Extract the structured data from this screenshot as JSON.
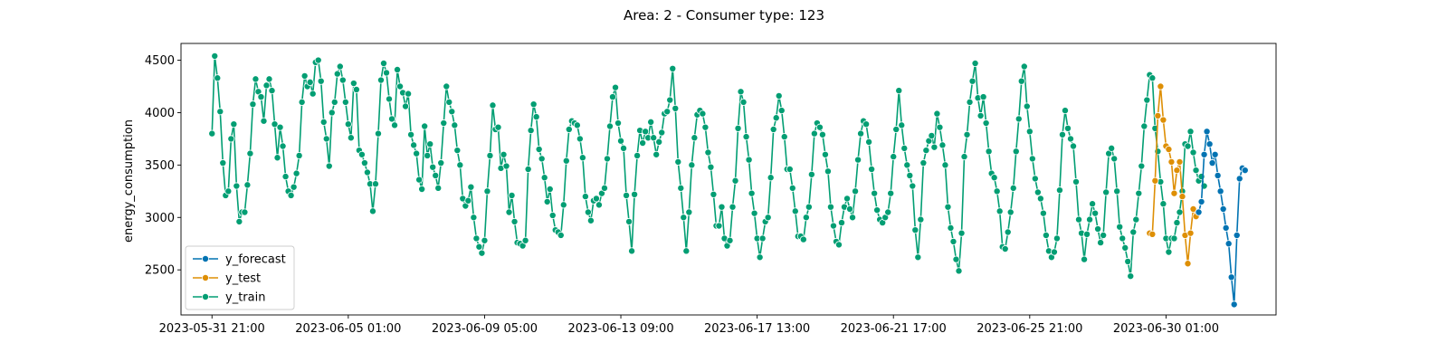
{
  "chart_data": {
    "type": "line",
    "title": "Area: 2 - Consumer type: 123",
    "xlabel": "",
    "ylabel": "energy_consumption",
    "x_ticks": [
      "2023-05-31 21:00",
      "2023-06-05 01:00",
      "2023-06-09 05:00",
      "2023-06-13 09:00",
      "2023-06-17 13:00",
      "2023-06-21 17:00",
      "2023-06-25 21:00",
      "2023-06-30 01:00"
    ],
    "y_ticks": [
      2500,
      3000,
      3500,
      4000,
      4500
    ],
    "ylim": [
      2070,
      4660
    ],
    "x_step_hours": 2,
    "grid": false,
    "legend_position": "lower-left",
    "series": [
      {
        "name": "y_forecast",
        "color": "#0173b2",
        "start_index": 362,
        "values": [
          3050,
          3150,
          3600,
          3820,
          3700,
          3520,
          3600,
          3400,
          3250,
          3080,
          2900,
          2750,
          2430,
          2170,
          2830,
          3370,
          3470,
          3450
        ]
      },
      {
        "name": "y_test",
        "color": "#de8f05",
        "start_index": 344,
        "values": [
          2850,
          2840,
          3350,
          3970,
          4250,
          3930,
          3680,
          3650,
          3530,
          3230,
          3450,
          3530,
          3200,
          2830,
          2560,
          2850,
          3080,
          3010
        ]
      },
      {
        "name": "y_train",
        "color": "#029e73",
        "start_index": 0,
        "values": [
          3800,
          4540,
          4330,
          4010,
          3520,
          3210,
          3250,
          3750,
          3890,
          3300,
          2960,
          3050,
          3050,
          3310,
          3610,
          4080,
          4320,
          4200,
          4150,
          3920,
          4260,
          4320,
          4210,
          3890,
          3570,
          3860,
          3680,
          3390,
          3250,
          3210,
          3290,
          3420,
          3590,
          4100,
          4350,
          4250,
          4290,
          4180,
          4480,
          4500,
          4300,
          3910,
          3750,
          3490,
          4000,
          4100,
          4370,
          4440,
          4310,
          4100,
          3890,
          3760,
          4280,
          4220,
          3640,
          3600,
          3520,
          3430,
          3320,
          3060,
          3320,
          3800,
          4310,
          4470,
          4380,
          4130,
          3940,
          3880,
          4410,
          4250,
          4190,
          4060,
          4180,
          3790,
          3690,
          3610,
          3360,
          3270,
          3870,
          3590,
          3700,
          3480,
          3400,
          3280,
          3520,
          3900,
          4250,
          4100,
          4010,
          3880,
          3640,
          3500,
          3180,
          3110,
          3160,
          3290,
          3000,
          2800,
          2720,
          2660,
          2780,
          3250,
          3590,
          4070,
          3840,
          3860,
          3470,
          3600,
          3490,
          3050,
          3210,
          2960,
          2760,
          2750,
          2730,
          2780,
          3460,
          3830,
          4080,
          3960,
          3650,
          3560,
          3380,
          3150,
          3270,
          3020,
          2880,
          2860,
          2830,
          3120,
          3540,
          3840,
          3920,
          3900,
          3880,
          3750,
          3570,
          3200,
          3050,
          2970,
          3160,
          3180,
          3120,
          3230,
          3280,
          3560,
          3870,
          4150,
          4240,
          3900,
          3730,
          3660,
          3210,
          2960,
          2680,
          3220,
          3590,
          3830,
          3710,
          3820,
          3760,
          3910,
          3760,
          3600,
          3720,
          3810,
          3990,
          4010,
          4120,
          4420,
          4040,
          3530,
          3280,
          3000,
          2680,
          3050,
          3500,
          3760,
          3980,
          4020,
          3990,
          3860,
          3620,
          3480,
          3220,
          2920,
          2920,
          3100,
          2800,
          2730,
          2780,
          3100,
          3350,
          3850,
          4200,
          4100,
          3770,
          3550,
          3230,
          3040,
          2800,
          2620,
          2800,
          2960,
          3000,
          3380,
          3840,
          3950,
          4160,
          4020,
          3770,
          3460,
          3460,
          3280,
          3060,
          2820,
          2820,
          2790,
          3000,
          3100,
          3410,
          3800,
          3900,
          3860,
          3790,
          3600,
          3440,
          3100,
          2920,
          2770,
          2740,
          2950,
          3100,
          3180,
          3080,
          3000,
          3250,
          3550,
          3800,
          3920,
          3890,
          3720,
          3460,
          3230,
          3070,
          2980,
          2950,
          3000,
          3050,
          3230,
          3580,
          3840,
          4210,
          3880,
          3660,
          3500,
          3400,
          3300,
          2880,
          2620,
          2980,
          3520,
          3640,
          3730,
          3780,
          3670,
          3990,
          3860,
          3690,
          3500,
          3100,
          2900,
          2770,
          2600,
          2490,
          2850,
          3580,
          3790,
          4100,
          4300,
          4470,
          4140,
          3970,
          4150,
          3900,
          3630,
          3420,
          3380,
          3250,
          3060,
          2720,
          2700,
          2860,
          3050,
          3280,
          3630,
          3940,
          4300,
          4440,
          4060,
          3820,
          3560,
          3370,
          3240,
          3180,
          3040,
          2830,
          2680,
          2620,
          2670,
          2800,
          3260,
          3790,
          4020,
          3850,
          3750,
          3680,
          3340,
          2980,
          2850,
          2600,
          2840,
          2980,
          3130,
          3040,
          2890,
          2760,
          2830,
          3240,
          3610,
          3660,
          3560,
          3250,
          2910,
          2800,
          2710,
          2580,
          2440,
          2860,
          2980,
          3230,
          3490,
          3870,
          4120,
          4360,
          4330,
          3850,
          3630,
          3340,
          3130,
          2800,
          2670,
          2800,
          2800,
          2950,
          3050,
          3250,
          3700,
          3680,
          3820,
          3620,
          3450,
          3350,
          3390,
          3300
        ]
      }
    ]
  }
}
